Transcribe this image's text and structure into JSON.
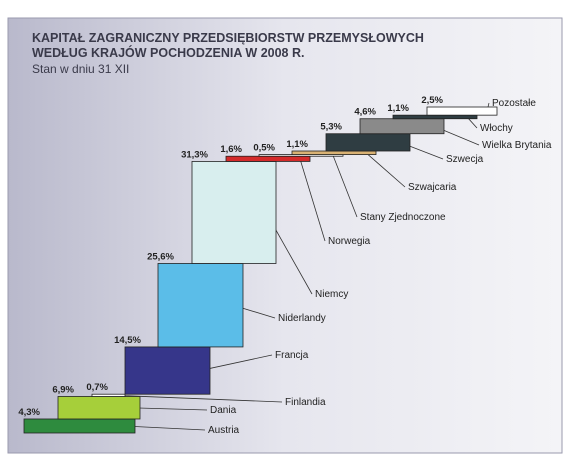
{
  "chart_data": {
    "type": "waterfall",
    "title": "KAPITAŁ ZAGRANICZNY PRZEDSIĘBIORSTW PRZEMYSŁOWYCH",
    "title_line2": "WEDŁUG KRAJÓW POCHODZENIA W 2008 R.",
    "subtitle": "Stan w dniu 31 XII",
    "categories": [
      "Austria",
      "Dania",
      "Finlandia",
      "Francja",
      "Niderlandy",
      "Niemcy",
      "Norwegia",
      "Stany Zjednoczone",
      "Szwajcaria",
      "Szwecja",
      "Wielka Brytania",
      "Włochy",
      "Pozostałe"
    ],
    "values": [
      4.3,
      6.9,
      0.7,
      14.5,
      25.6,
      31.3,
      1.6,
      0.5,
      1.1,
      5.3,
      4.6,
      1.1,
      2.5
    ],
    "value_labels": [
      "4,3%",
      "6,9%",
      "0,7%",
      "14,5%",
      "25,6%",
      "31,3%",
      "1,6%",
      "0,5%",
      "1,1%",
      "5,3%",
      "4,6%",
      "1,1%",
      "2,5%"
    ],
    "colors": [
      "#2e8b3e",
      "#a6cf3a",
      "#ffffff",
      "#36368a",
      "#5bbde8",
      "#d8eeee",
      "#d42a2a",
      "#eeeeee",
      "#d9b274",
      "#2f3d42",
      "#8a8a8a",
      "#2f3d42",
      "#ffffff"
    ]
  }
}
